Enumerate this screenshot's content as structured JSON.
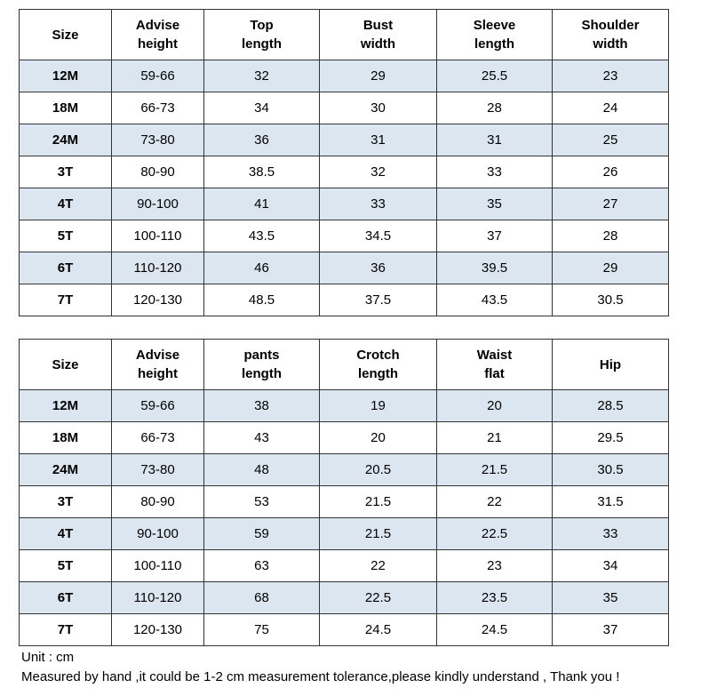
{
  "tables": [
    {
      "header": [
        "Size",
        "Advise\nheight",
        "Top\nlength",
        "Bust\nwidth",
        "Sleeve\nlength",
        "Shoulder\nwidth"
      ],
      "rows": [
        [
          "12M",
          "59-66",
          32,
          29,
          25.5,
          23
        ],
        [
          "18M",
          "66-73",
          34,
          30,
          28,
          24
        ],
        [
          "24M",
          "73-80",
          36,
          31,
          31,
          25
        ],
        [
          "3T",
          "80-90",
          38.5,
          32,
          33,
          26
        ],
        [
          "4T",
          "90-100",
          41,
          33,
          35,
          27
        ],
        [
          "5T",
          "100-110",
          43.5,
          34.5,
          37,
          28
        ],
        [
          "6T",
          "110-120",
          46,
          36,
          39.5,
          29
        ],
        [
          "7T",
          "120-130",
          48.5,
          37.5,
          43.5,
          30.5
        ]
      ]
    },
    {
      "header": [
        "Size",
        "Advise\nheight",
        "pants\nlength",
        "Crotch\nlength",
        "Waist\nflat",
        "Hip"
      ],
      "rows": [
        [
          "12M",
          "59-66",
          38,
          19,
          20,
          28.5
        ],
        [
          "18M",
          "66-73",
          43,
          20,
          21,
          29.5
        ],
        [
          "24M",
          "73-80",
          48,
          20.5,
          21.5,
          30.5
        ],
        [
          "3T",
          "80-90",
          53,
          21.5,
          22,
          31.5
        ],
        [
          "4T",
          "90-100",
          59,
          21.5,
          22.5,
          33
        ],
        [
          "5T",
          "100-110",
          63,
          22,
          23,
          34
        ],
        [
          "6T",
          "110-120",
          68,
          22.5,
          23.5,
          35
        ],
        [
          "7T",
          "120-130",
          75,
          24.5,
          24.5,
          37
        ]
      ]
    }
  ],
  "notes": [
    "Unit : cm",
    "Measured by hand ,it could be 1-2 cm measurement tolerance,please kindly understand , Thank you !"
  ]
}
